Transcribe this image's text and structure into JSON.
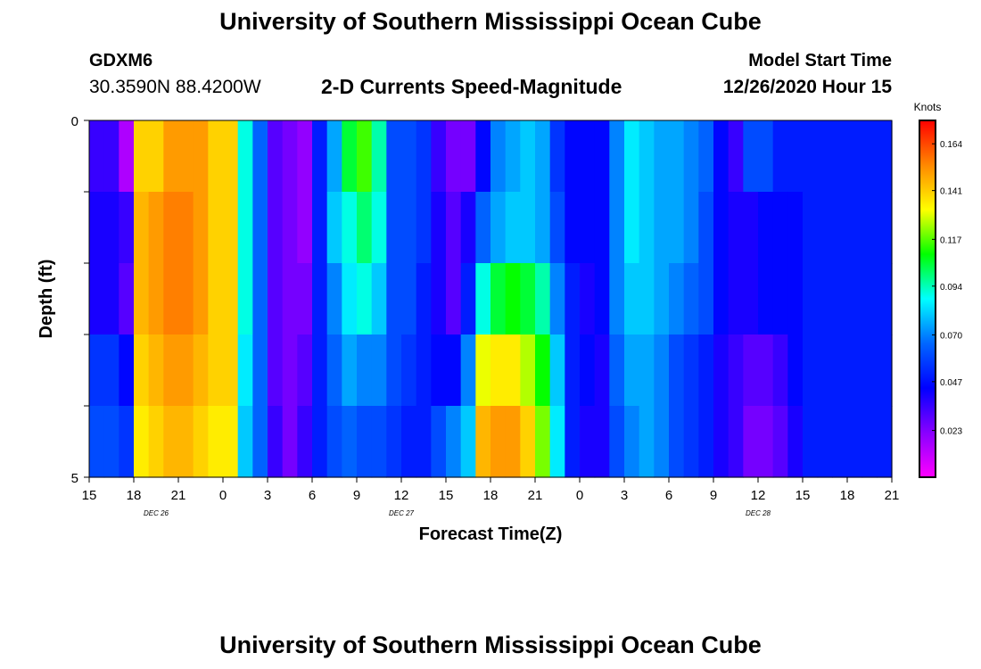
{
  "header": {
    "title_top": "University of Southern Mississippi Ocean Cube",
    "title_bottom": "University of Southern Mississippi Ocean Cube",
    "station_id": "GDXM6",
    "station_coords": "30.3590N 88.4200W",
    "model_label": "Model Start Time",
    "model_time": "12/26/2020 Hour 15"
  },
  "chart_data": {
    "type": "heatmap",
    "title": "2-D Currents Speed-Magnitude",
    "xlabel": "Forecast Time(Z)",
    "ylabel": "Depth (ft)",
    "ylim": [
      0,
      5
    ],
    "y_ticks": [
      "0",
      "5"
    ],
    "x_ticks": [
      "15",
      "18",
      "21",
      "0",
      "3",
      "6",
      "9",
      "12",
      "15",
      "18",
      "21",
      "0",
      "3",
      "6",
      "9",
      "12",
      "15",
      "18",
      "21"
    ],
    "date_labels": [
      "DEC 26",
      "DEC 27",
      "DEC 28"
    ],
    "colorbar": {
      "unit": "Knots",
      "ticks": [
        "0.164",
        "0.141",
        "0.117",
        "0.094",
        "0.070",
        "0.047",
        "0.023"
      ],
      "range": [
        0,
        0.1755
      ],
      "colors": [
        "#ff00ff",
        "#8800ff",
        "#0000ff",
        "#0066ff",
        "#00ffff",
        "#00ff00",
        "#ffff00",
        "#ff8800",
        "#ff0000"
      ]
    },
    "x_start_hour": 15,
    "hours": 54,
    "rows": 5,
    "speed_knots": [
      [
        0.035,
        0.035,
        0.015,
        0.14,
        0.14,
        0.15,
        0.15,
        0.15,
        0.14,
        0.14,
        0.09,
        0.065,
        0.03,
        0.025,
        0.02,
        0.05,
        0.075,
        0.105,
        0.115,
        0.095,
        0.06,
        0.06,
        0.055,
        0.035,
        0.025,
        0.025,
        0.045,
        0.07,
        0.075,
        0.08,
        0.075,
        0.055,
        0.045,
        0.045,
        0.045,
        0.07,
        0.085,
        0.08,
        0.075,
        0.075,
        0.07,
        0.065,
        0.045,
        0.035,
        0.06,
        0.06,
        0.05,
        0.05,
        0.05,
        0.05,
        0.05,
        0.05,
        0.05,
        0.05
      ],
      [
        0.04,
        0.04,
        0.035,
        0.145,
        0.15,
        0.155,
        0.155,
        0.15,
        0.14,
        0.14,
        0.09,
        0.065,
        0.03,
        0.025,
        0.02,
        0.05,
        0.08,
        0.09,
        0.1,
        0.09,
        0.06,
        0.06,
        0.055,
        0.04,
        0.03,
        0.04,
        0.065,
        0.075,
        0.08,
        0.08,
        0.075,
        0.06,
        0.045,
        0.045,
        0.045,
        0.07,
        0.085,
        0.08,
        0.075,
        0.075,
        0.07,
        0.06,
        0.045,
        0.04,
        0.04,
        0.045,
        0.045,
        0.045,
        0.05,
        0.05,
        0.05,
        0.05,
        0.05,
        0.05
      ],
      [
        0.04,
        0.04,
        0.03,
        0.145,
        0.15,
        0.155,
        0.155,
        0.15,
        0.14,
        0.14,
        0.09,
        0.065,
        0.03,
        0.025,
        0.025,
        0.05,
        0.07,
        0.085,
        0.09,
        0.08,
        0.06,
        0.06,
        0.05,
        0.04,
        0.03,
        0.05,
        0.09,
        0.105,
        0.11,
        0.105,
        0.095,
        0.07,
        0.05,
        0.04,
        0.045,
        0.07,
        0.08,
        0.08,
        0.075,
        0.07,
        0.065,
        0.06,
        0.045,
        0.04,
        0.04,
        0.045,
        0.045,
        0.045,
        0.05,
        0.05,
        0.05,
        0.05,
        0.05,
        0.05
      ],
      [
        0.055,
        0.055,
        0.045,
        0.14,
        0.145,
        0.15,
        0.15,
        0.145,
        0.14,
        0.14,
        0.085,
        0.065,
        0.03,
        0.025,
        0.03,
        0.05,
        0.065,
        0.075,
        0.07,
        0.07,
        0.06,
        0.055,
        0.05,
        0.045,
        0.045,
        0.07,
        0.13,
        0.135,
        0.135,
        0.125,
        0.11,
        0.08,
        0.05,
        0.045,
        0.04,
        0.065,
        0.075,
        0.075,
        0.07,
        0.06,
        0.055,
        0.05,
        0.04,
        0.035,
        0.03,
        0.03,
        0.035,
        0.045,
        0.05,
        0.05,
        0.05,
        0.05,
        0.05,
        0.05
      ],
      [
        0.06,
        0.06,
        0.055,
        0.135,
        0.14,
        0.145,
        0.145,
        0.14,
        0.135,
        0.135,
        0.08,
        0.065,
        0.035,
        0.025,
        0.035,
        0.05,
        0.06,
        0.065,
        0.06,
        0.06,
        0.055,
        0.05,
        0.05,
        0.06,
        0.07,
        0.08,
        0.145,
        0.15,
        0.15,
        0.14,
        0.12,
        0.085,
        0.05,
        0.04,
        0.04,
        0.06,
        0.07,
        0.075,
        0.07,
        0.06,
        0.055,
        0.05,
        0.04,
        0.035,
        0.025,
        0.025,
        0.03,
        0.04,
        0.05,
        0.05,
        0.05,
        0.05,
        0.05,
        0.05
      ]
    ]
  }
}
